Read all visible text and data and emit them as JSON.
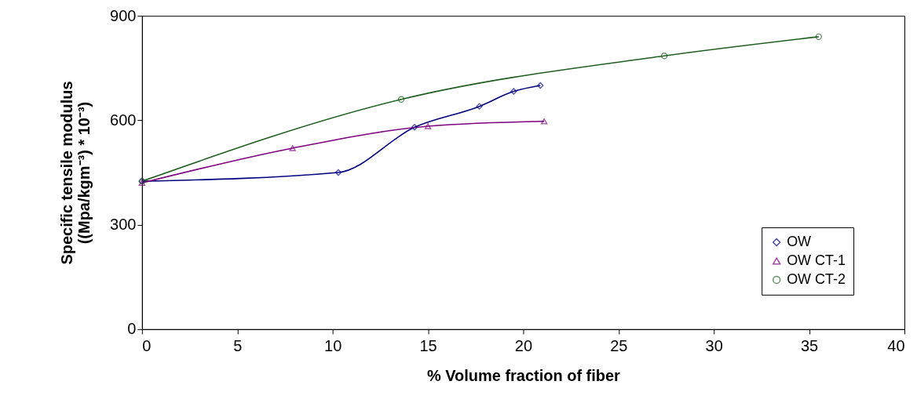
{
  "chart_data": {
    "type": "line",
    "xlabel": "% Volume fraction of fiber",
    "ylabel": "Specific tensile modulus\n((Mpa/kgm⁻³) * 10⁻³)",
    "xlim": [
      0,
      40
    ],
    "xticks": [
      0,
      5,
      10,
      15,
      20,
      25,
      30,
      35,
      40
    ],
    "ylim": [
      0,
      900
    ],
    "yticks": [
      0,
      300,
      600,
      900
    ],
    "grid": false,
    "legend": "bottom right",
    "line_style": "solid",
    "series": [
      {
        "name": "OW",
        "color": "#000080",
        "marker": "diamond",
        "x": [
          0,
          10.3,
          14.3,
          17.7,
          19.5,
          20.9
        ],
        "values": [
          425,
          450,
          580,
          640,
          683,
          700
        ]
      },
      {
        "name": "OW CT-1",
        "color": "#800080",
        "marker": "triangle",
        "x": [
          0,
          7.9,
          15.0,
          21.1
        ],
        "values": [
          420,
          520,
          583,
          597
        ]
      },
      {
        "name": "OW CT-2",
        "color": "#1f5f1f",
        "marker": "circle",
        "x": [
          0,
          13.6,
          27.4,
          35.5
        ],
        "values": [
          425,
          660,
          785,
          840
        ]
      }
    ]
  }
}
